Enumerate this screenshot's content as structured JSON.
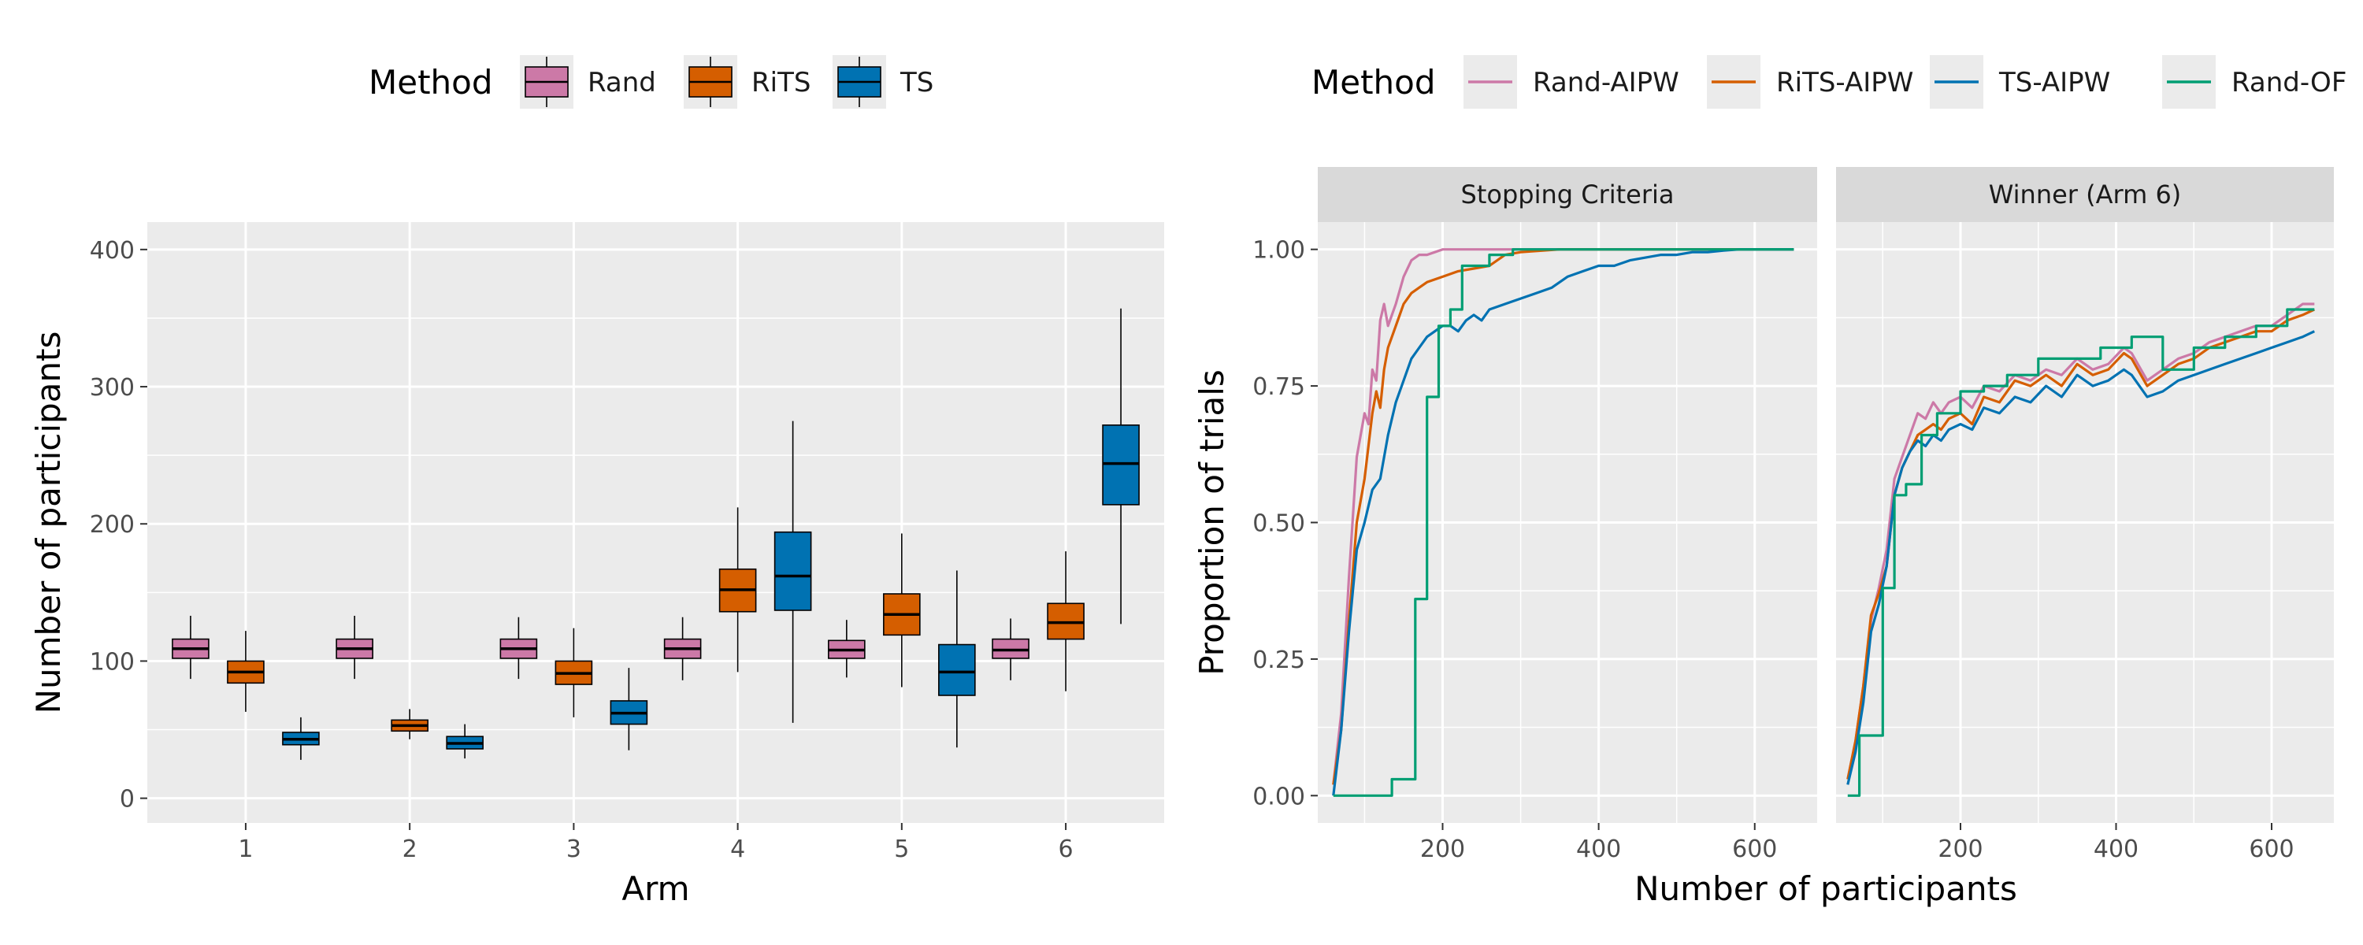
{
  "chart_data": [
    {
      "type": "box",
      "legend": {
        "title": "Method",
        "entries": [
          {
            "label": "Rand",
            "color": "#CC79A7"
          },
          {
            "label": "RiTS",
            "color": "#D55E00"
          },
          {
            "label": "TS",
            "color": "#0072B2"
          }
        ]
      },
      "xlabel": "Arm",
      "ylabel": "Number of participants",
      "ylim": [
        -18,
        420
      ],
      "yticks": [
        0,
        100,
        200,
        300,
        400
      ],
      "yticklabels": [
        "0",
        "100",
        "200",
        "300",
        "400"
      ],
      "categories": [
        "1",
        "2",
        "3",
        "4",
        "5",
        "6"
      ],
      "series": [
        {
          "name": "Rand",
          "color": "#CC79A7",
          "boxes": [
            {
              "whislo": 87,
              "q1": 102,
              "med": 109,
              "q3": 116,
              "whishi": 133
            },
            {
              "whislo": 87,
              "q1": 102,
              "med": 109,
              "q3": 116,
              "whishi": 133
            },
            {
              "whislo": 87,
              "q1": 102,
              "med": 109,
              "q3": 116,
              "whishi": 132
            },
            {
              "whislo": 86,
              "q1": 102,
              "med": 109,
              "q3": 116,
              "whishi": 132
            },
            {
              "whislo": 88,
              "q1": 102,
              "med": 108,
              "q3": 115,
              "whishi": 130
            },
            {
              "whislo": 86,
              "q1": 102,
              "med": 108,
              "q3": 116,
              "whishi": 131
            }
          ]
        },
        {
          "name": "RiTS",
          "color": "#D55E00",
          "boxes": [
            {
              "whislo": 63,
              "q1": 84,
              "med": 92,
              "q3": 100,
              "whishi": 122
            },
            {
              "whislo": 43,
              "q1": 49,
              "med": 53,
              "q3": 57,
              "whishi": 65
            },
            {
              "whislo": 59,
              "q1": 83,
              "med": 91,
              "q3": 100,
              "whishi": 124
            },
            {
              "whislo": 92,
              "q1": 136,
              "med": 152,
              "q3": 167,
              "whishi": 212
            },
            {
              "whislo": 81,
              "q1": 119,
              "med": 134,
              "q3": 149,
              "whishi": 193
            },
            {
              "whislo": 78,
              "q1": 116,
              "med": 128,
              "q3": 142,
              "whishi": 180
            }
          ]
        },
        {
          "name": "TS",
          "color": "#0072B2",
          "boxes": [
            {
              "whislo": 28,
              "q1": 39,
              "med": 43,
              "q3": 48,
              "whishi": 59
            },
            {
              "whislo": 29,
              "q1": 36,
              "med": 40,
              "q3": 45,
              "whishi": 54
            },
            {
              "whislo": 35,
              "q1": 54,
              "med": 62,
              "q3": 71,
              "whishi": 95
            },
            {
              "whislo": 55,
              "q1": 137,
              "med": 162,
              "q3": 194,
              "whishi": 275
            },
            {
              "whislo": 37,
              "q1": 75,
              "med": 92,
              "q3": 112,
              "whishi": 166
            },
            {
              "whislo": 127,
              "q1": 214,
              "med": 244,
              "q3": 272,
              "whishi": 357
            }
          ]
        }
      ]
    },
    {
      "type": "line",
      "legend": {
        "title": "Method",
        "entries": [
          {
            "label": "Rand-AIPW",
            "color": "#CC79A7"
          },
          {
            "label": "RiTS-AIPW",
            "color": "#D55E00"
          },
          {
            "label": "TS-AIPW",
            "color": "#0072B2"
          },
          {
            "label": "Rand-OF",
            "color": "#009E73"
          }
        ]
      },
      "xlabel": "Number of participants",
      "ylabel": "Proportion of trials",
      "xlim": [
        40,
        680
      ],
      "ylim": [
        -0.05,
        1.05
      ],
      "xticks": [
        200,
        400,
        600
      ],
      "xticklabels": [
        "200",
        "400",
        "600"
      ],
      "yticks": [
        0,
        0.25,
        0.5,
        0.75,
        1.0
      ],
      "yticklabels": [
        "0.00",
        "0.25",
        "0.50",
        "0.75",
        "1.00"
      ],
      "panels": [
        {
          "title": "Stopping Criteria",
          "series": [
            {
              "name": "Rand-AIPW",
              "x": [
                60,
                70,
                80,
                90,
                100,
                105,
                110,
                115,
                120,
                125,
                130,
                140,
                150,
                160,
                170,
                180,
                190,
                200,
                210,
                220,
                240,
                300,
                400,
                500,
                650
              ],
              "y": [
                0.02,
                0.15,
                0.4,
                0.62,
                0.7,
                0.68,
                0.78,
                0.76,
                0.87,
                0.9,
                0.86,
                0.9,
                0.95,
                0.98,
                0.99,
                0.99,
                0.995,
                1.0,
                1.0,
                1.0,
                1.0,
                1.0,
                1.0,
                1.0,
                1.0
              ]
            },
            {
              "name": "RiTS-AIPW",
              "x": [
                60,
                70,
                80,
                90,
                100,
                110,
                115,
                120,
                125,
                130,
                140,
                150,
                160,
                170,
                180,
                200,
                220,
                240,
                260,
                280,
                300,
                350,
                400,
                450,
                500,
                650
              ],
              "y": [
                0.02,
                0.12,
                0.32,
                0.5,
                0.58,
                0.7,
                0.74,
                0.71,
                0.78,
                0.82,
                0.86,
                0.9,
                0.92,
                0.93,
                0.94,
                0.95,
                0.96,
                0.965,
                0.97,
                0.99,
                0.995,
                1.0,
                1.0,
                1.0,
                1.0,
                1.0
              ]
            },
            {
              "name": "TS-AIPW",
              "x": [
                60,
                70,
                80,
                90,
                100,
                110,
                120,
                130,
                140,
                150,
                160,
                170,
                180,
                190,
                200,
                210,
                220,
                230,
                240,
                250,
                260,
                280,
                300,
                320,
                340,
                360,
                380,
                400,
                420,
                440,
                460,
                480,
                500,
                520,
                540,
                560,
                580,
                600,
                650
              ],
              "y": [
                0.0,
                0.12,
                0.3,
                0.45,
                0.5,
                0.56,
                0.58,
                0.66,
                0.72,
                0.76,
                0.8,
                0.82,
                0.84,
                0.85,
                0.86,
                0.86,
                0.85,
                0.87,
                0.88,
                0.87,
                0.89,
                0.9,
                0.91,
                0.92,
                0.93,
                0.95,
                0.96,
                0.97,
                0.97,
                0.98,
                0.985,
                0.99,
                0.99,
                0.995,
                0.995,
                0.998,
                1.0,
                1.0,
                1.0
              ]
            },
            {
              "name": "Rand-OF",
              "x": [
                60,
                135,
                135,
                155,
                155,
                165,
                165,
                180,
                180,
                195,
                195,
                210,
                210,
                225,
                225,
                260,
                260,
                290,
                290,
                350,
                350,
                650
              ],
              "y": [
                0.0,
                0.0,
                0.03,
                0.03,
                0.03,
                0.03,
                0.36,
                0.36,
                0.73,
                0.73,
                0.86,
                0.86,
                0.89,
                0.89,
                0.97,
                0.97,
                0.99,
                0.99,
                1.0,
                1.0,
                1.0,
                1.0
              ]
            }
          ]
        },
        {
          "title": "Winner (Arm 6)",
          "series": [
            {
              "name": "Rand-AIPW",
              "x": [
                55,
                65,
                75,
                85,
                95,
                105,
                115,
                125,
                135,
                145,
                155,
                165,
                175,
                185,
                200,
                215,
                230,
                250,
                270,
                290,
                310,
                330,
                350,
                370,
                390,
                410,
                420,
                440,
                460,
                480,
                500,
                520,
                540,
                560,
                580,
                600,
                620,
                640,
                655
              ],
              "y": [
                0.03,
                0.1,
                0.2,
                0.32,
                0.38,
                0.45,
                0.58,
                0.62,
                0.66,
                0.7,
                0.69,
                0.72,
                0.7,
                0.72,
                0.73,
                0.71,
                0.75,
                0.74,
                0.77,
                0.76,
                0.78,
                0.77,
                0.8,
                0.78,
                0.79,
                0.82,
                0.81,
                0.76,
                0.78,
                0.8,
                0.81,
                0.83,
                0.84,
                0.85,
                0.86,
                0.86,
                0.88,
                0.9,
                0.9
              ]
            },
            {
              "name": "RiTS-AIPW",
              "x": [
                55,
                65,
                75,
                85,
                95,
                105,
                115,
                125,
                135,
                145,
                155,
                165,
                175,
                185,
                200,
                215,
                230,
                250,
                270,
                290,
                310,
                330,
                350,
                370,
                390,
                410,
                420,
                440,
                460,
                480,
                500,
                520,
                540,
                560,
                580,
                600,
                620,
                640,
                655
              ],
              "y": [
                0.03,
                0.1,
                0.2,
                0.33,
                0.37,
                0.42,
                0.55,
                0.6,
                0.63,
                0.66,
                0.67,
                0.68,
                0.67,
                0.69,
                0.7,
                0.68,
                0.73,
                0.72,
                0.76,
                0.75,
                0.77,
                0.75,
                0.79,
                0.77,
                0.78,
                0.81,
                0.8,
                0.75,
                0.77,
                0.79,
                0.8,
                0.82,
                0.83,
                0.84,
                0.85,
                0.85,
                0.87,
                0.88,
                0.89
              ]
            },
            {
              "name": "TS-AIPW",
              "x": [
                55,
                65,
                75,
                85,
                95,
                105,
                115,
                125,
                135,
                145,
                155,
                165,
                175,
                185,
                200,
                215,
                230,
                250,
                270,
                290,
                310,
                330,
                350,
                370,
                390,
                410,
                420,
                440,
                460,
                480,
                500,
                520,
                540,
                560,
                580,
                600,
                620,
                640,
                655
              ],
              "y": [
                0.02,
                0.08,
                0.17,
                0.3,
                0.35,
                0.42,
                0.55,
                0.6,
                0.63,
                0.65,
                0.64,
                0.66,
                0.65,
                0.67,
                0.68,
                0.67,
                0.71,
                0.7,
                0.73,
                0.72,
                0.75,
                0.73,
                0.77,
                0.75,
                0.76,
                0.78,
                0.77,
                0.73,
                0.74,
                0.76,
                0.77,
                0.78,
                0.79,
                0.8,
                0.81,
                0.82,
                0.83,
                0.84,
                0.85
              ]
            },
            {
              "name": "Rand-OF",
              "x": [
                55,
                70,
                70,
                90,
                90,
                100,
                100,
                115,
                115,
                130,
                130,
                150,
                150,
                170,
                170,
                200,
                200,
                230,
                230,
                260,
                260,
                300,
                300,
                340,
                340,
                380,
                380,
                420,
                420,
                460,
                460,
                500,
                500,
                540,
                540,
                580,
                580,
                620,
                620,
                655
              ],
              "y": [
                0.0,
                0.0,
                0.11,
                0.11,
                0.11,
                0.11,
                0.38,
                0.38,
                0.55,
                0.55,
                0.57,
                0.57,
                0.66,
                0.66,
                0.7,
                0.7,
                0.74,
                0.74,
                0.75,
                0.75,
                0.77,
                0.77,
                0.8,
                0.8,
                0.8,
                0.8,
                0.82,
                0.82,
                0.84,
                0.84,
                0.78,
                0.78,
                0.82,
                0.82,
                0.84,
                0.84,
                0.86,
                0.86,
                0.89,
                0.89
              ]
            }
          ]
        }
      ]
    }
  ]
}
